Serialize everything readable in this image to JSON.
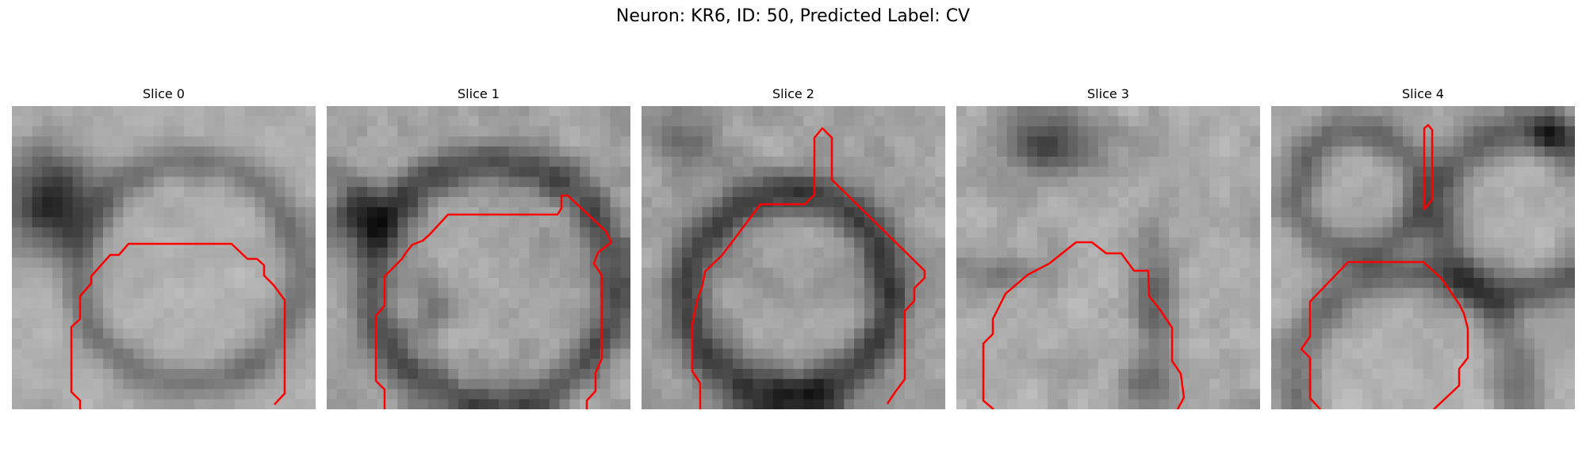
{
  "figure": {
    "title": "Neuron: KR6, ID: 50, Predicted Label: CV",
    "contour_color": "#ff0000"
  },
  "panels": [
    {
      "title": "Slice 0"
    },
    {
      "title": "Slice 1"
    },
    {
      "title": "Slice 2"
    },
    {
      "title": "Slice 3"
    },
    {
      "title": "Slice 4"
    }
  ]
}
